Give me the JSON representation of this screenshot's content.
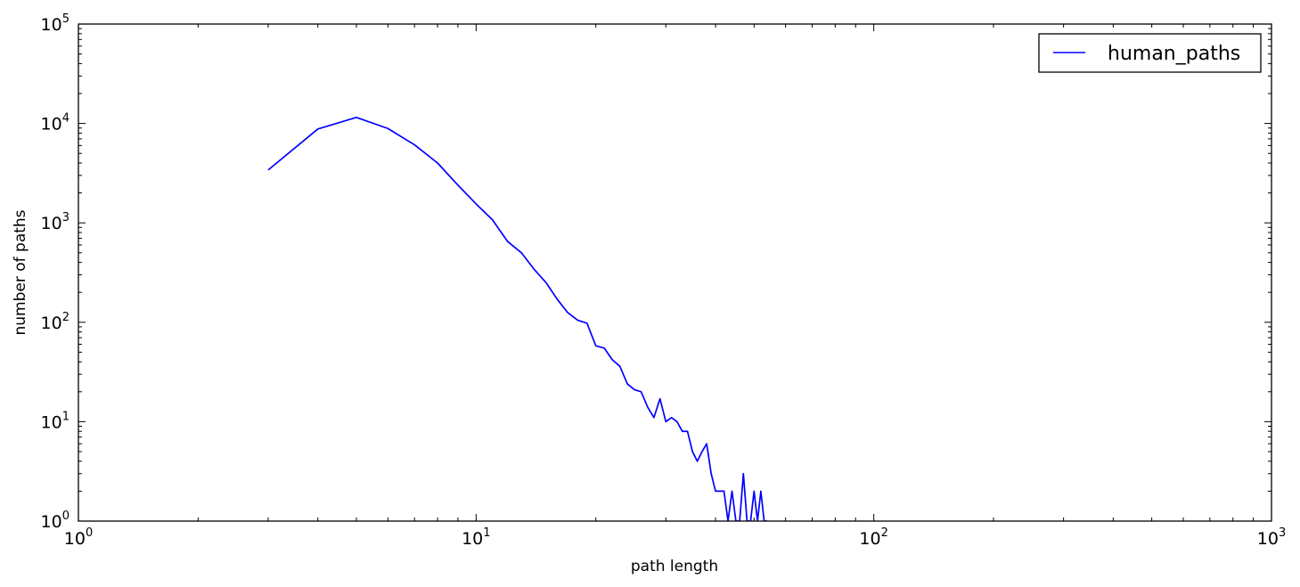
{
  "chart_data": {
    "type": "line",
    "title": "",
    "xlabel": "path length",
    "ylabel": "number of paths",
    "xscale": "log",
    "yscale": "log",
    "xlim": [
      1,
      1000
    ],
    "ylim": [
      1,
      100000
    ],
    "x_ticks": [
      {
        "base": "10",
        "exp": "0"
      },
      {
        "base": "10",
        "exp": "1"
      },
      {
        "base": "10",
        "exp": "2"
      },
      {
        "base": "10",
        "exp": "3"
      }
    ],
    "y_ticks": [
      {
        "base": "10",
        "exp": "0"
      },
      {
        "base": "10",
        "exp": "1"
      },
      {
        "base": "10",
        "exp": "2"
      },
      {
        "base": "10",
        "exp": "3"
      },
      {
        "base": "10",
        "exp": "4"
      },
      {
        "base": "10",
        "exp": "5"
      }
    ],
    "grid": false,
    "legend": {
      "position": "top-right"
    },
    "series": [
      {
        "name": "human_paths",
        "color": "#0000ff",
        "x": [
          3,
          4,
          5,
          6,
          7,
          8,
          9,
          10,
          11,
          12,
          13,
          14,
          15,
          16,
          17,
          18,
          19,
          20,
          21,
          22,
          23,
          24,
          25,
          26,
          27,
          28,
          29,
          30,
          31,
          32,
          33,
          34,
          35,
          36,
          37,
          38,
          39,
          40,
          41,
          42,
          43,
          44,
          45,
          46,
          47,
          48,
          49,
          50,
          51,
          52,
          53,
          54
        ],
        "y": [
          3400,
          8800,
          11500,
          8900,
          6100,
          4000,
          2400,
          1550,
          1070,
          650,
          500,
          340,
          250,
          170,
          125,
          105,
          98,
          58,
          55,
          42,
          36,
          24,
          21,
          20,
          14,
          11,
          17,
          10,
          11,
          10,
          8,
          8,
          5,
          4,
          5,
          6,
          3,
          2,
          2,
          2,
          1,
          2,
          1,
          1,
          3,
          1,
          1,
          2,
          1,
          2,
          1,
          1
        ]
      }
    ]
  }
}
